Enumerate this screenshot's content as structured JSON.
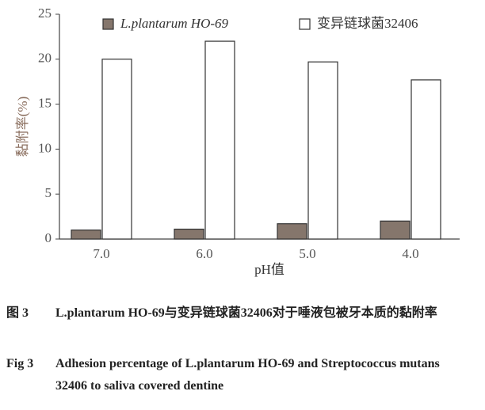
{
  "chart_data": {
    "type": "bar",
    "ylabel": "黏附率(%)",
    "xlabel": "pH值",
    "categories": [
      "7.0",
      "6.0",
      "5.0",
      "4.0"
    ],
    "series": [
      {
        "name": "L.plantarum HO-69",
        "color": "#85766c",
        "values": [
          1.0,
          1.1,
          1.7,
          2.0
        ]
      },
      {
        "name": "变异链球菌32406",
        "color": "#ffffff",
        "values": [
          20.0,
          22.0,
          19.7,
          17.7
        ]
      }
    ],
    "ylim": [
      0,
      25
    ],
    "yticks": [
      0,
      5,
      10,
      15,
      20,
      25
    ],
    "grid": false
  },
  "caption": {
    "cn_label": "图 3",
    "cn_text": "L.plantarum HO-69与变异链球菌32406对于唾液包被牙本质的黏附率",
    "en_label": "Fig 3",
    "en_text": "Adhesion percentage of L.plantarum HO-69 and Streptococcus mutans 32406 to saliva covered dentine"
  }
}
